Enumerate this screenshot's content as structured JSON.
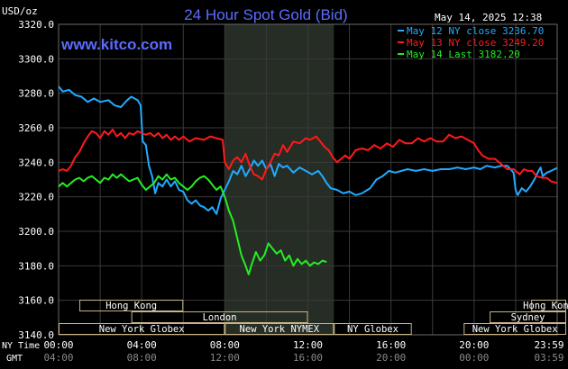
{
  "chart_data": {
    "type": "line",
    "title": "24 Hour Spot Gold (Bid)",
    "watermark": "www.kitco.com",
    "unit_label": "USD/oz",
    "timestamp": "May 14, 2025 12:38",
    "ylim": [
      3140,
      3320
    ],
    "y_ticks": [
      "3320.0",
      "3300.0",
      "3280.0",
      "3260.0",
      "3240.0",
      "3220.0",
      "3200.0",
      "3180.0",
      "3160.0",
      "3140.0"
    ],
    "x_row_labels": {
      "ny": "NY Time",
      "gmt": "GMT"
    },
    "x_ticks_ny": [
      "00:00",
      "04:00",
      "08:00",
      "12:00",
      "16:00",
      "20:00",
      "23:59"
    ],
    "x_ticks_gmt": [
      "04:00",
      "08:00",
      "12:00",
      "16:00",
      "20:00",
      "00:00",
      "03:59"
    ],
    "shaded_x_range": [
      8.0,
      13.25
    ],
    "colors": {
      "background": "#000000",
      "grid": "#3a3a3a",
      "title": "#5b6cff",
      "market_box": "#c8b484"
    },
    "series": [
      {
        "name": "May 12 NY close 3236.70",
        "color": "#22aaff",
        "points": [
          [
            0,
            3284
          ],
          [
            0.2,
            3281
          ],
          [
            0.5,
            3282
          ],
          [
            0.8,
            3279
          ],
          [
            1.1,
            3278
          ],
          [
            1.4,
            3275
          ],
          [
            1.7,
            3277
          ],
          [
            2.0,
            3275
          ],
          [
            2.4,
            3276
          ],
          [
            2.7,
            3273
          ],
          [
            3.0,
            3272
          ],
          [
            3.3,
            3276
          ],
          [
            3.5,
            3278
          ],
          [
            3.8,
            3276
          ],
          [
            3.95,
            3273
          ],
          [
            4.05,
            3252
          ],
          [
            4.2,
            3250
          ],
          [
            4.35,
            3238
          ],
          [
            4.5,
            3232
          ],
          [
            4.65,
            3222
          ],
          [
            4.8,
            3228
          ],
          [
            5.0,
            3226
          ],
          [
            5.2,
            3230
          ],
          [
            5.4,
            3226
          ],
          [
            5.6,
            3229
          ],
          [
            5.8,
            3224
          ],
          [
            6.0,
            3223
          ],
          [
            6.2,
            3218
          ],
          [
            6.4,
            3216
          ],
          [
            6.6,
            3218
          ],
          [
            6.8,
            3215
          ],
          [
            7.0,
            3214
          ],
          [
            7.2,
            3212
          ],
          [
            7.4,
            3214
          ],
          [
            7.6,
            3210
          ],
          [
            7.8,
            3219
          ],
          [
            8.0,
            3224
          ],
          [
            8.2,
            3229
          ],
          [
            8.4,
            3235
          ],
          [
            8.6,
            3233
          ],
          [
            8.8,
            3238
          ],
          [
            9.0,
            3232
          ],
          [
            9.2,
            3236
          ],
          [
            9.4,
            3241
          ],
          [
            9.6,
            3238
          ],
          [
            9.8,
            3241
          ],
          [
            10.0,
            3236
          ],
          [
            10.2,
            3239
          ],
          [
            10.4,
            3232
          ],
          [
            10.6,
            3239
          ],
          [
            10.8,
            3237
          ],
          [
            11.0,
            3238
          ],
          [
            11.3,
            3234
          ],
          [
            11.6,
            3237
          ],
          [
            11.9,
            3235
          ],
          [
            12.2,
            3233
          ],
          [
            12.5,
            3235
          ],
          [
            12.7,
            3232
          ],
          [
            12.9,
            3228
          ],
          [
            13.1,
            3225
          ],
          [
            13.4,
            3224
          ],
          [
            13.7,
            3222
          ],
          [
            14.0,
            3223
          ],
          [
            14.3,
            3221
          ],
          [
            14.6,
            3222
          ],
          [
            15.0,
            3225
          ],
          [
            15.3,
            3230
          ],
          [
            15.6,
            3232
          ],
          [
            15.9,
            3235
          ],
          [
            16.2,
            3234
          ],
          [
            16.5,
            3235
          ],
          [
            16.8,
            3236
          ],
          [
            17.2,
            3235
          ],
          [
            17.6,
            3236
          ],
          [
            18.0,
            3235
          ],
          [
            18.4,
            3236
          ],
          [
            18.8,
            3236
          ],
          [
            19.2,
            3237
          ],
          [
            19.6,
            3236
          ],
          [
            20.0,
            3237
          ],
          [
            20.3,
            3236
          ],
          [
            20.6,
            3238
          ],
          [
            21.0,
            3237
          ],
          [
            21.3,
            3238
          ],
          [
            21.6,
            3238
          ],
          [
            21.9,
            3234
          ],
          [
            22.0,
            3224
          ],
          [
            22.1,
            3221
          ],
          [
            22.3,
            3225
          ],
          [
            22.5,
            3223
          ],
          [
            22.7,
            3226
          ],
          [
            22.9,
            3230
          ],
          [
            23.1,
            3235
          ],
          [
            23.2,
            3237
          ],
          [
            23.3,
            3232
          ],
          [
            23.5,
            3234
          ],
          [
            23.7,
            3235
          ],
          [
            23.99,
            3236.7
          ]
        ]
      },
      {
        "name": "May 13 NY close 3249.20",
        "color": "#ff1a1a",
        "points": [
          [
            0,
            3235
          ],
          [
            0.2,
            3236
          ],
          [
            0.4,
            3235
          ],
          [
            0.6,
            3238
          ],
          [
            0.8,
            3243
          ],
          [
            1.0,
            3246
          ],
          [
            1.2,
            3251
          ],
          [
            1.4,
            3255
          ],
          [
            1.6,
            3258
          ],
          [
            1.8,
            3257
          ],
          [
            2.0,
            3254
          ],
          [
            2.2,
            3258
          ],
          [
            2.4,
            3256
          ],
          [
            2.6,
            3259
          ],
          [
            2.8,
            3255
          ],
          [
            3.0,
            3257
          ],
          [
            3.2,
            3254
          ],
          [
            3.4,
            3257
          ],
          [
            3.6,
            3256
          ],
          [
            3.8,
            3258
          ],
          [
            4.0,
            3257
          ],
          [
            4.2,
            3256
          ],
          [
            4.4,
            3257
          ],
          [
            4.6,
            3255
          ],
          [
            4.8,
            3257
          ],
          [
            5.0,
            3254
          ],
          [
            5.2,
            3256
          ],
          [
            5.4,
            3253
          ],
          [
            5.6,
            3255
          ],
          [
            5.8,
            3253
          ],
          [
            6.0,
            3255
          ],
          [
            6.3,
            3252
          ],
          [
            6.6,
            3254
          ],
          [
            7.0,
            3253
          ],
          [
            7.3,
            3255
          ],
          [
            7.6,
            3254
          ],
          [
            7.9,
            3253
          ],
          [
            8.0,
            3240
          ],
          [
            8.2,
            3236
          ],
          [
            8.4,
            3241
          ],
          [
            8.6,
            3243
          ],
          [
            8.8,
            3240
          ],
          [
            9.0,
            3245
          ],
          [
            9.2,
            3238
          ],
          [
            9.4,
            3233
          ],
          [
            9.6,
            3232
          ],
          [
            9.8,
            3230
          ],
          [
            10.0,
            3236
          ],
          [
            10.2,
            3240
          ],
          [
            10.4,
            3245
          ],
          [
            10.6,
            3244
          ],
          [
            10.8,
            3250
          ],
          [
            11.0,
            3246
          ],
          [
            11.3,
            3252
          ],
          [
            11.6,
            3251
          ],
          [
            11.9,
            3254
          ],
          [
            12.1,
            3253
          ],
          [
            12.4,
            3255
          ],
          [
            12.6,
            3252
          ],
          [
            12.8,
            3249
          ],
          [
            13.0,
            3247
          ],
          [
            13.2,
            3243
          ],
          [
            13.4,
            3240
          ],
          [
            13.6,
            3242
          ],
          [
            13.8,
            3244
          ],
          [
            14.0,
            3242
          ],
          [
            14.3,
            3247
          ],
          [
            14.6,
            3248
          ],
          [
            14.9,
            3247
          ],
          [
            15.2,
            3250
          ],
          [
            15.5,
            3248
          ],
          [
            15.8,
            3251
          ],
          [
            16.1,
            3249
          ],
          [
            16.4,
            3253
          ],
          [
            16.7,
            3251
          ],
          [
            17.0,
            3251
          ],
          [
            17.3,
            3254
          ],
          [
            17.6,
            3252
          ],
          [
            17.9,
            3254
          ],
          [
            18.2,
            3252
          ],
          [
            18.5,
            3252
          ],
          [
            18.8,
            3256
          ],
          [
            19.1,
            3254
          ],
          [
            19.4,
            3255
          ],
          [
            19.7,
            3253
          ],
          [
            20.0,
            3251
          ],
          [
            20.2,
            3247
          ],
          [
            20.4,
            3244
          ],
          [
            20.7,
            3242
          ],
          [
            21.0,
            3242
          ],
          [
            21.3,
            3239
          ],
          [
            21.6,
            3236
          ],
          [
            21.9,
            3236
          ],
          [
            22.2,
            3233
          ],
          [
            22.4,
            3236
          ],
          [
            22.6,
            3235
          ],
          [
            22.8,
            3235
          ],
          [
            23.0,
            3232
          ],
          [
            23.3,
            3231
          ],
          [
            23.5,
            3231
          ],
          [
            23.7,
            3229
          ],
          [
            23.99,
            3228
          ]
        ]
      },
      {
        "name": "May 14 Last 3182.20",
        "color": "#22ee22",
        "points": [
          [
            0,
            3226
          ],
          [
            0.2,
            3228
          ],
          [
            0.4,
            3226
          ],
          [
            0.6,
            3228
          ],
          [
            0.8,
            3230
          ],
          [
            1.0,
            3231
          ],
          [
            1.2,
            3229
          ],
          [
            1.4,
            3231
          ],
          [
            1.6,
            3232
          ],
          [
            1.8,
            3230
          ],
          [
            2.0,
            3228
          ],
          [
            2.2,
            3231
          ],
          [
            2.4,
            3230
          ],
          [
            2.6,
            3233
          ],
          [
            2.8,
            3231
          ],
          [
            3.0,
            3233
          ],
          [
            3.2,
            3231
          ],
          [
            3.4,
            3229
          ],
          [
            3.6,
            3230
          ],
          [
            3.8,
            3231
          ],
          [
            4.0,
            3227
          ],
          [
            4.2,
            3224
          ],
          [
            4.4,
            3226
          ],
          [
            4.6,
            3228
          ],
          [
            4.8,
            3232
          ],
          [
            5.0,
            3230
          ],
          [
            5.2,
            3233
          ],
          [
            5.4,
            3230
          ],
          [
            5.6,
            3231
          ],
          [
            5.8,
            3228
          ],
          [
            6.0,
            3226
          ],
          [
            6.2,
            3224
          ],
          [
            6.4,
            3226
          ],
          [
            6.6,
            3229
          ],
          [
            6.8,
            3231
          ],
          [
            7.0,
            3232
          ],
          [
            7.2,
            3230
          ],
          [
            7.4,
            3227
          ],
          [
            7.6,
            3224
          ],
          [
            7.8,
            3226
          ],
          [
            8.0,
            3220
          ],
          [
            8.2,
            3212
          ],
          [
            8.4,
            3206
          ],
          [
            8.6,
            3196
          ],
          [
            8.8,
            3186
          ],
          [
            9.0,
            3180
          ],
          [
            9.15,
            3175
          ],
          [
            9.3,
            3181
          ],
          [
            9.5,
            3188
          ],
          [
            9.7,
            3183
          ],
          [
            9.9,
            3186
          ],
          [
            10.1,
            3193
          ],
          [
            10.3,
            3190
          ],
          [
            10.5,
            3187
          ],
          [
            10.7,
            3189
          ],
          [
            10.9,
            3183
          ],
          [
            11.1,
            3186
          ],
          [
            11.3,
            3180
          ],
          [
            11.5,
            3184
          ],
          [
            11.7,
            3181
          ],
          [
            11.9,
            3183
          ],
          [
            12.1,
            3180
          ],
          [
            12.3,
            3182
          ],
          [
            12.5,
            3181
          ],
          [
            12.7,
            3183
          ],
          [
            12.9,
            3182.2
          ]
        ]
      }
    ],
    "markets": [
      {
        "label": "Hong Kong",
        "row": 0,
        "start": 1.0,
        "end": 6.0
      },
      {
        "label": "Hong Kong",
        "row": 0,
        "start": 22.75,
        "end": 26.0
      },
      {
        "label": "London",
        "row": 1,
        "start": 3.5,
        "end": 12.0
      },
      {
        "label": "Sydney",
        "row": 1,
        "start": 20.75,
        "end": 26.0
      },
      {
        "label": "New York Globex",
        "row": 2,
        "start": 0,
        "end": 8.0
      },
      {
        "label": "New York NYMEX",
        "row": 2,
        "start": 8.0,
        "end": 13.25
      },
      {
        "label": "NY Globex",
        "row": 2,
        "start": 13.25,
        "end": 17.0
      },
      {
        "label": "New York Globex",
        "row": 2,
        "start": 19.5,
        "end": 26.0
      }
    ]
  }
}
